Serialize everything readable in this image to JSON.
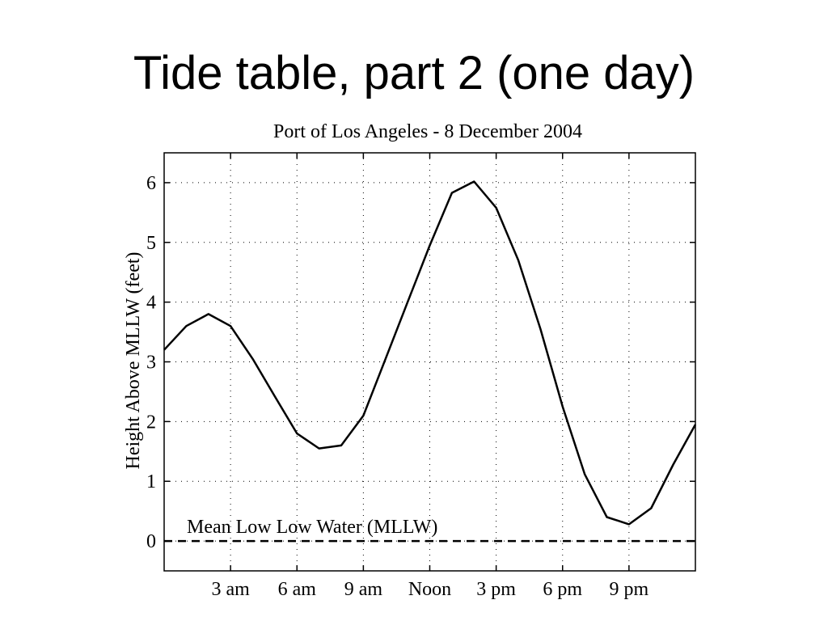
{
  "slide": {
    "title": "Tide table, part 2 (one day)"
  },
  "chart_data": {
    "type": "line",
    "title": "Port of Los Angeles - 8 December 2004",
    "xlabel": "",
    "ylabel": "Height Above MLLW (feet)",
    "xlim": [
      0,
      24
    ],
    "ylim": [
      -0.5,
      6.5
    ],
    "grid": true,
    "x_ticks": [
      {
        "value": 3,
        "label": "3 am"
      },
      {
        "value": 6,
        "label": "6 am"
      },
      {
        "value": 9,
        "label": "9 am"
      },
      {
        "value": 12,
        "label": "Noon"
      },
      {
        "value": 15,
        "label": "3 pm"
      },
      {
        "value": 18,
        "label": "6 pm"
      },
      {
        "value": 21,
        "label": "9 pm"
      }
    ],
    "y_ticks": [
      {
        "value": 0,
        "label": "0"
      },
      {
        "value": 1,
        "label": "1"
      },
      {
        "value": 2,
        "label": "2"
      },
      {
        "value": 3,
        "label": "3"
      },
      {
        "value": 4,
        "label": "4"
      },
      {
        "value": 5,
        "label": "5"
      },
      {
        "value": 6,
        "label": "6"
      }
    ],
    "series": [
      {
        "x": [
          0,
          1,
          2,
          3,
          4,
          5,
          6,
          7,
          8,
          9,
          10,
          11,
          12,
          13,
          14,
          15,
          16,
          17,
          18,
          19,
          20,
          21,
          22,
          23,
          24
        ],
        "y": [
          3.2,
          3.6,
          3.8,
          3.6,
          3.05,
          2.42,
          1.8,
          1.55,
          1.6,
          2.1,
          3.05,
          4.0,
          4.95,
          5.83,
          6.02,
          5.58,
          4.7,
          3.55,
          2.25,
          1.12,
          0.4,
          0.28,
          0.55,
          1.28,
          1.95
        ]
      }
    ],
    "reference_line": {
      "y": 0,
      "label": "Mean Low Low Water (MLLW)",
      "style": "dashed"
    }
  }
}
